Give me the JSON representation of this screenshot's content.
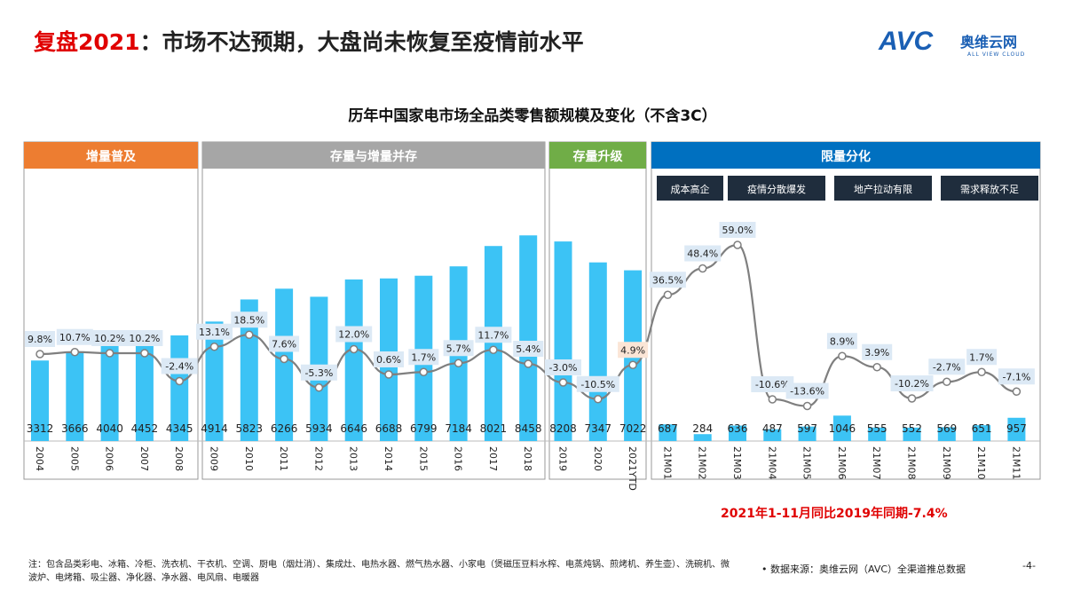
{
  "header": {
    "title_red": "复盘2021",
    "title_rest": "：市场不达预期，大盘尚未恢复至疫情前水平"
  },
  "logo": {
    "brand": "AVC",
    "cn": "奥维云网",
    "en": "ALL VIEW CLOUD"
  },
  "chart_data": {
    "type": "bar+line",
    "title": "历年中国家电市场全品类零售额规模及变化（不含3C）",
    "categories": [
      "2004",
      "2005",
      "2006",
      "2007",
      "2008",
      "2009",
      "2010",
      "2011",
      "2012",
      "2013",
      "2014",
      "2015",
      "2016",
      "2017",
      "2018",
      "2019",
      "2020",
      "2021YTD",
      "21M01",
      "21M02",
      "21M03",
      "21M04",
      "21M05",
      "21M06",
      "21M07",
      "21M08",
      "21M09",
      "21M10",
      "21M11"
    ],
    "bar_values": [
      3312,
      3666,
      4040,
      4452,
      4345,
      4914,
      5823,
      6266,
      5934,
      6646,
      6688,
      6799,
      7184,
      8021,
      8458,
      8208,
      7347,
      7022,
      687,
      284,
      636,
      487,
      597,
      1046,
      555,
      552,
      569,
      651,
      957
    ],
    "growth_labels": [
      "9.8%",
      "10.7%",
      "10.2%",
      "10.2%",
      "-2.4%",
      "13.1%",
      "18.5%",
      "7.6%",
      "-5.3%",
      "12.0%",
      "0.6%",
      "1.7%",
      "5.7%",
      "11.7%",
      "5.4%",
      "-3.0%",
      "-10.5%",
      "4.9%",
      "36.5%",
      "48.4%",
      "59.0%",
      "-10.6%",
      "-13.6%",
      "8.9%",
      "3.9%",
      "-10.2%",
      "-2.7%",
      "1.7%",
      "-7.1%"
    ],
    "growth_values": [
      9.8,
      10.7,
      10.2,
      10.2,
      -2.4,
      13.1,
      18.5,
      7.6,
      -5.3,
      12.0,
      0.6,
      1.7,
      5.7,
      11.7,
      5.4,
      -3.0,
      -10.5,
      4.9,
      36.5,
      48.4,
      59.0,
      -10.6,
      -13.6,
      8.9,
      3.9,
      -10.2,
      -2.7,
      1.7,
      -7.1
    ],
    "phases": [
      {
        "label": "增量普及",
        "color": "#ed7d31",
        "count": 5
      },
      {
        "label": "存量与增量并存",
        "color": "#a6a6a6",
        "count": 10
      },
      {
        "label": "存量升级",
        "color": "#70ad47",
        "count": 3
      },
      {
        "label": "限量分化",
        "color": "#0070c0",
        "count": 11
      }
    ],
    "tags": [
      "成本高企",
      "疫情分散爆发",
      "地产拉动有限",
      "需求释放不足"
    ],
    "bar_color": "#3cc3f5",
    "line_color": "#7f7f7f",
    "highlight_label_color": "#fbe5d6"
  },
  "summary": "2021年1-11月同比2019年同期-7.4%",
  "note": "注：包含品类彩电、冰箱、冷柜、洗衣机、干衣机、空调、厨电（烟灶消）、集成灶、电热水器、燃气热水器、小家电（煲磁压豆料水榨、电蒸炖锅、煎烤机、养生壶）、洗碗机、微波炉、电烤箱、吸尘器、净化器、净水器、电风扇、电暖器",
  "source": "数据来源：奥维云网（AVC）全渠道推总数据",
  "page": "-4-"
}
